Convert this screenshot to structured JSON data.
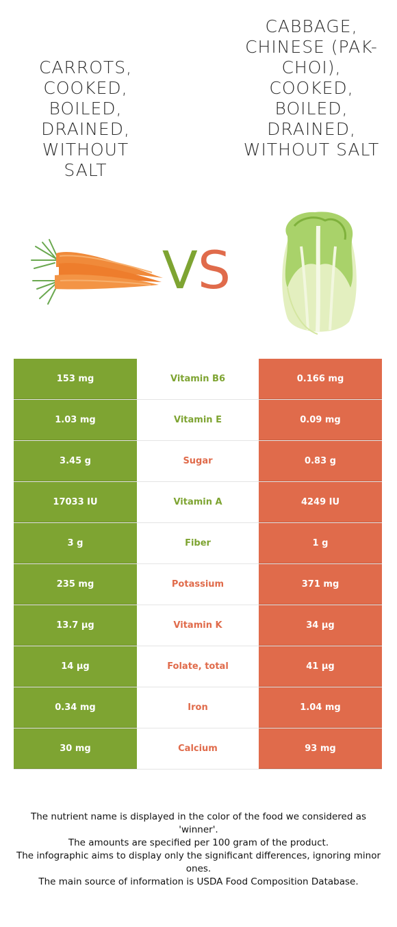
{
  "food_left": {
    "title": "CARROTS, COOKED, BOILED, DRAINED, WITHOUT SALT",
    "image_icon": "carrot-image",
    "color": "#7ea432"
  },
  "food_right": {
    "title": "CABBAGE, CHINESE (PAK-CHOI), COOKED, BOILED, DRAINED, WITHOUT SALT",
    "image_icon": "cabbage-image",
    "color": "#e06b4b"
  },
  "vs": {
    "v": "V",
    "s": "S"
  },
  "nutrients": [
    {
      "name": "Vitamin B6",
      "left": "153 mg",
      "right": "0.166 mg",
      "winner": "left"
    },
    {
      "name": "Vitamin E",
      "left": "1.03 mg",
      "right": "0.09 mg",
      "winner": "left"
    },
    {
      "name": "Sugar",
      "left": "3.45 g",
      "right": "0.83 g",
      "winner": "right"
    },
    {
      "name": "Vitamin A",
      "left": "17033 IU",
      "right": "4249 IU",
      "winner": "left"
    },
    {
      "name": "Fiber",
      "left": "3 g",
      "right": "1 g",
      "winner": "left"
    },
    {
      "name": "Potassium",
      "left": "235 mg",
      "right": "371 mg",
      "winner": "right"
    },
    {
      "name": "Vitamin K",
      "left": "13.7 µg",
      "right": "34 µg",
      "winner": "right"
    },
    {
      "name": "Folate, total",
      "left": "14 µg",
      "right": "41 µg",
      "winner": "right"
    },
    {
      "name": "Iron",
      "left": "0.34 mg",
      "right": "1.04 mg",
      "winner": "right"
    },
    {
      "name": "Calcium",
      "left": "30 mg",
      "right": "93 mg",
      "winner": "right"
    }
  ],
  "footnotes": [
    "The nutrient name is displayed in the color of the food we considered as 'winner'.",
    "The amounts are specified per 100 gram of the product.",
    "The infographic aims to display only the significant differences, ignoring minor ones.",
    "The main source of information is USDA Food Composition Database."
  ]
}
